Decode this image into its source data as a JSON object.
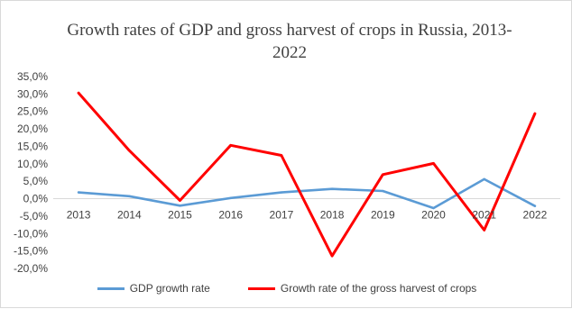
{
  "chart_data": {
    "type": "line",
    "title": "Growth rates of GDP and gross harvest of crops in Russia, 2013-2022",
    "title_lines": [
      "Growth rates of GDP and gross harvest of crops in Russia, 2013-",
      "2022"
    ],
    "xlabel": "",
    "ylabel": "",
    "categories": [
      "2013",
      "2014",
      "2015",
      "2016",
      "2017",
      "2018",
      "2019",
      "2020",
      "2021",
      "2022"
    ],
    "ylim": [
      -20,
      35
    ],
    "ytick_step": 5,
    "yticks": [
      "35,0%",
      "30,0%",
      "25,0%",
      "20,0%",
      "15,0%",
      "10,0%",
      "5,0%",
      "0,0%",
      "-5,0%",
      "-10,0%",
      "-15,0%",
      "-20,0%"
    ],
    "grid": false,
    "legend_position": "bottom",
    "series": [
      {
        "name": "GDP growth rate",
        "color": "#5b9bd5",
        "values": [
          1.8,
          0.7,
          -2.0,
          0.2,
          1.8,
          2.8,
          2.2,
          -2.7,
          5.6,
          -2.1
        ]
      },
      {
        "name": "Growth rate of the gross harvest of crops",
        "color": "#ff0000",
        "values": [
          30.3,
          13.8,
          -0.5,
          15.3,
          12.4,
          -16.4,
          6.9,
          10.1,
          -9.0,
          24.4
        ]
      }
    ]
  }
}
